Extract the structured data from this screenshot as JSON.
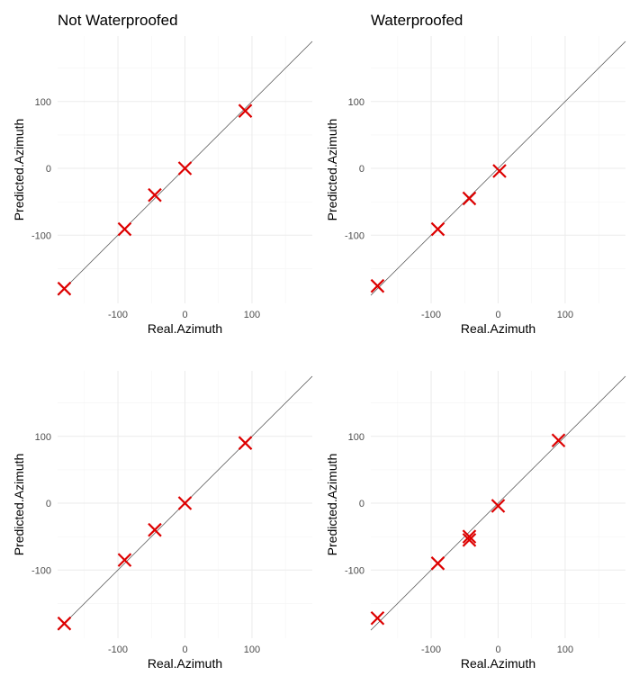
{
  "chart_data": [
    {
      "type": "scatter",
      "title": "Not Waterproofed",
      "xlabel": "Real.Azimuth",
      "ylabel": "Predicted.Azimuth",
      "xlim": [
        -190,
        190
      ],
      "ylim": [
        -202,
        198
      ],
      "x_ticks": [
        -100,
        0,
        100
      ],
      "y_ticks": [
        -100,
        0,
        100
      ],
      "reference_line": "y = x",
      "marker": "x",
      "marker_color": "#dd0000",
      "points": [
        {
          "x": -180,
          "y": -180
        },
        {
          "x": -90,
          "y": -91
        },
        {
          "x": -45,
          "y": -40
        },
        {
          "x": 0,
          "y": 0
        },
        {
          "x": 90,
          "y": 86
        }
      ]
    },
    {
      "type": "scatter",
      "title": "Waterproofed",
      "xlabel": "Real.Azimuth",
      "ylabel": "Predicted.Azimuth",
      "xlim": [
        -190,
        190
      ],
      "ylim": [
        -202,
        198
      ],
      "x_ticks": [
        -100,
        0,
        100
      ],
      "y_ticks": [
        -100,
        0,
        100
      ],
      "reference_line": "y = x",
      "marker": "x",
      "marker_color": "#dd0000",
      "points": [
        {
          "x": -180,
          "y": -176
        },
        {
          "x": -90,
          "y": -91
        },
        {
          "x": -43,
          "y": -45
        },
        {
          "x": 2,
          "y": -4
        }
      ]
    },
    {
      "type": "scatter",
      "title": "",
      "xlabel": "Real.Azimuth",
      "ylabel": "Predicted.Azimuth",
      "xlim": [
        -190,
        190
      ],
      "ylim": [
        -202,
        198
      ],
      "x_ticks": [
        -100,
        0,
        100
      ],
      "y_ticks": [
        -100,
        0,
        100
      ],
      "reference_line": "y = x",
      "marker": "x",
      "marker_color": "#dd0000",
      "points": [
        {
          "x": -180,
          "y": -180
        },
        {
          "x": -90,
          "y": -85
        },
        {
          "x": -45,
          "y": -40
        },
        {
          "x": 0,
          "y": 0
        },
        {
          "x": 90,
          "y": 90
        }
      ]
    },
    {
      "type": "scatter",
      "title": "",
      "xlabel": "Real.Azimuth",
      "ylabel": "Predicted.Azimuth",
      "xlim": [
        -190,
        190
      ],
      "ylim": [
        -202,
        198
      ],
      "x_ticks": [
        -100,
        0,
        100
      ],
      "y_ticks": [
        -100,
        0,
        100
      ],
      "reference_line": "y = x",
      "marker": "x",
      "marker_color": "#dd0000",
      "points": [
        {
          "x": -180,
          "y": -172
        },
        {
          "x": -90,
          "y": -90
        },
        {
          "x": -43,
          "y": -50
        },
        {
          "x": -43,
          "y": -55
        },
        {
          "x": 0,
          "y": -4
        },
        {
          "x": 90,
          "y": 94
        }
      ]
    }
  ]
}
